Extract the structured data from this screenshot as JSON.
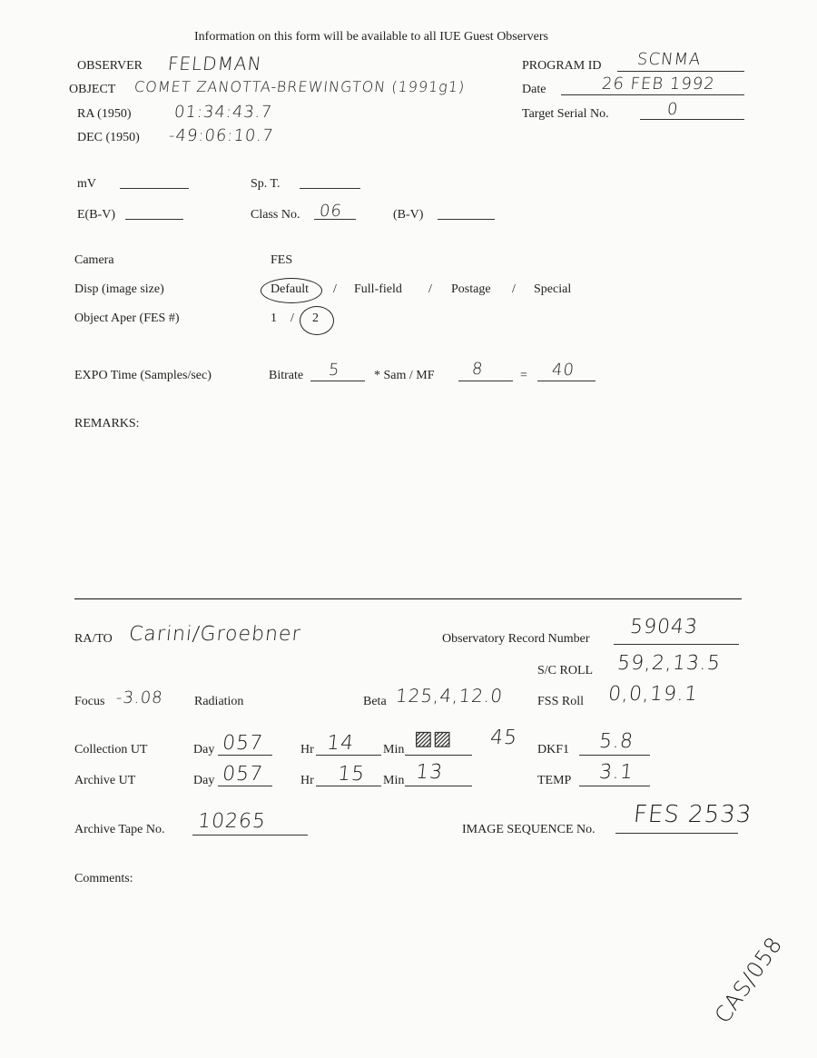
{
  "header": "Information on this form will be available to all IUE Guest Observers",
  "top": {
    "observer_label": "OBSERVER",
    "observer": "FELDMAN",
    "object_label": "OBJECT",
    "object": "COMET ZANOTTA-BREWINGTON (1991g1)",
    "ra_label": "RA  (1950)",
    "ra": "01:34:43.7",
    "dec_label": "DEC (1950)",
    "dec": "-49:06:10.7",
    "program_label": "PROGRAM ID",
    "program": "SCNMA",
    "date_label": "Date",
    "date": "26 FEB 1992",
    "serial_label": "Target Serial No.",
    "serial": "0"
  },
  "phot": {
    "mv_label": "mV",
    "spt_label": "Sp. T.",
    "ebv_label": "E(B-V)",
    "class_label": "Class No.",
    "class": "06",
    "bv_label": "(B-V)"
  },
  "camera": {
    "camera_label": "Camera",
    "camera": "FES",
    "disp_label": "Disp (image size)",
    "disp_options": [
      "Default",
      "Full-field",
      "Postage",
      "Special"
    ],
    "disp_selected": "Default",
    "aper_label": "Object Aper (FES #)",
    "aper_options": [
      "1",
      "2"
    ],
    "aper_selected": "2"
  },
  "expo": {
    "label": "EXPO Time (Samples/sec)",
    "bitrate_label": "Bitrate",
    "bitrate": "5",
    "sam_label": "* Sam / MF",
    "sam": "8",
    "eq": "=",
    "result": "40"
  },
  "remarks_label": "REMARKS:",
  "bottom": {
    "rato_label": "RA/TO",
    "rato": "Carini/Groebner",
    "orn_label": "Observatory Record Number",
    "orn": "59043",
    "scroll_label": "S/C ROLL",
    "scroll": "59,2,13.5",
    "focus_label": "Focus",
    "focus": "-3.08",
    "radiation_label": "Radiation",
    "beta_label": "Beta",
    "beta": "125,4,12.0",
    "fss_label": "FSS Roll",
    "fss": "0,0,19.1",
    "coll_label": "Collection UT",
    "day_label": "Day",
    "hr_label": "Hr",
    "min_label": "Min",
    "coll_day": "057",
    "coll_hr": "14",
    "coll_min": "45",
    "dkf1_label": "DKF1",
    "dkf1": "5.8",
    "arch_label": "Archive UT",
    "arch_day": "057",
    "arch_hr": "15",
    "arch_min": "13",
    "temp_label": "TEMP",
    "temp": "3.1",
    "tape_label": "Archive Tape No.",
    "tape": "10265",
    "seq_label": "IMAGE SEQUENCE No.",
    "seq": "FES 2533",
    "comments_label": "Comments:",
    "annotation": "CAS/058"
  }
}
